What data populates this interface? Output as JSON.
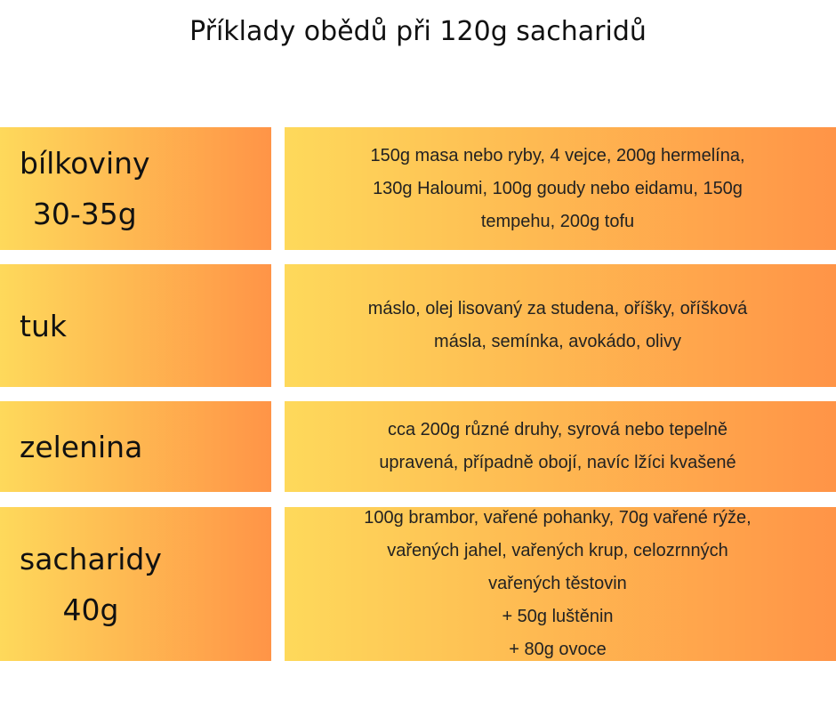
{
  "title": "Příklady obědů při 120g sacharidů",
  "rows": [
    {
      "label": [
        "bílkoviny",
        "30-35g"
      ],
      "text": [
        "150g masa nebo ryby, 4 vejce, 200g hermelína,",
        "130g Haloumi, 100g goudy nebo eidamu, 150g",
        "tempehu, 200g tofu"
      ]
    },
    {
      "label": [
        "tuk"
      ],
      "text": [
        "máslo, olej lisovaný za studena, oříšky, oříšková",
        "másla, semínka, avokádo, olivy"
      ]
    },
    {
      "label": [
        "zelenina"
      ],
      "text": [
        "cca 200g různé druhy, syrová nebo tepelně",
        "upravená, případně obojí, navíc lžíci kvašené"
      ]
    },
    {
      "label": [
        "sacharidy",
        "40g"
      ],
      "text": [
        "100g brambor, vařené pohanky, 70g vařené rýže,",
        "vařených jahel, vařených krup, celozrnných",
        "vařených těstovin",
        "+ 50g luštěnin",
        "+ 80g ovoce"
      ]
    }
  ]
}
